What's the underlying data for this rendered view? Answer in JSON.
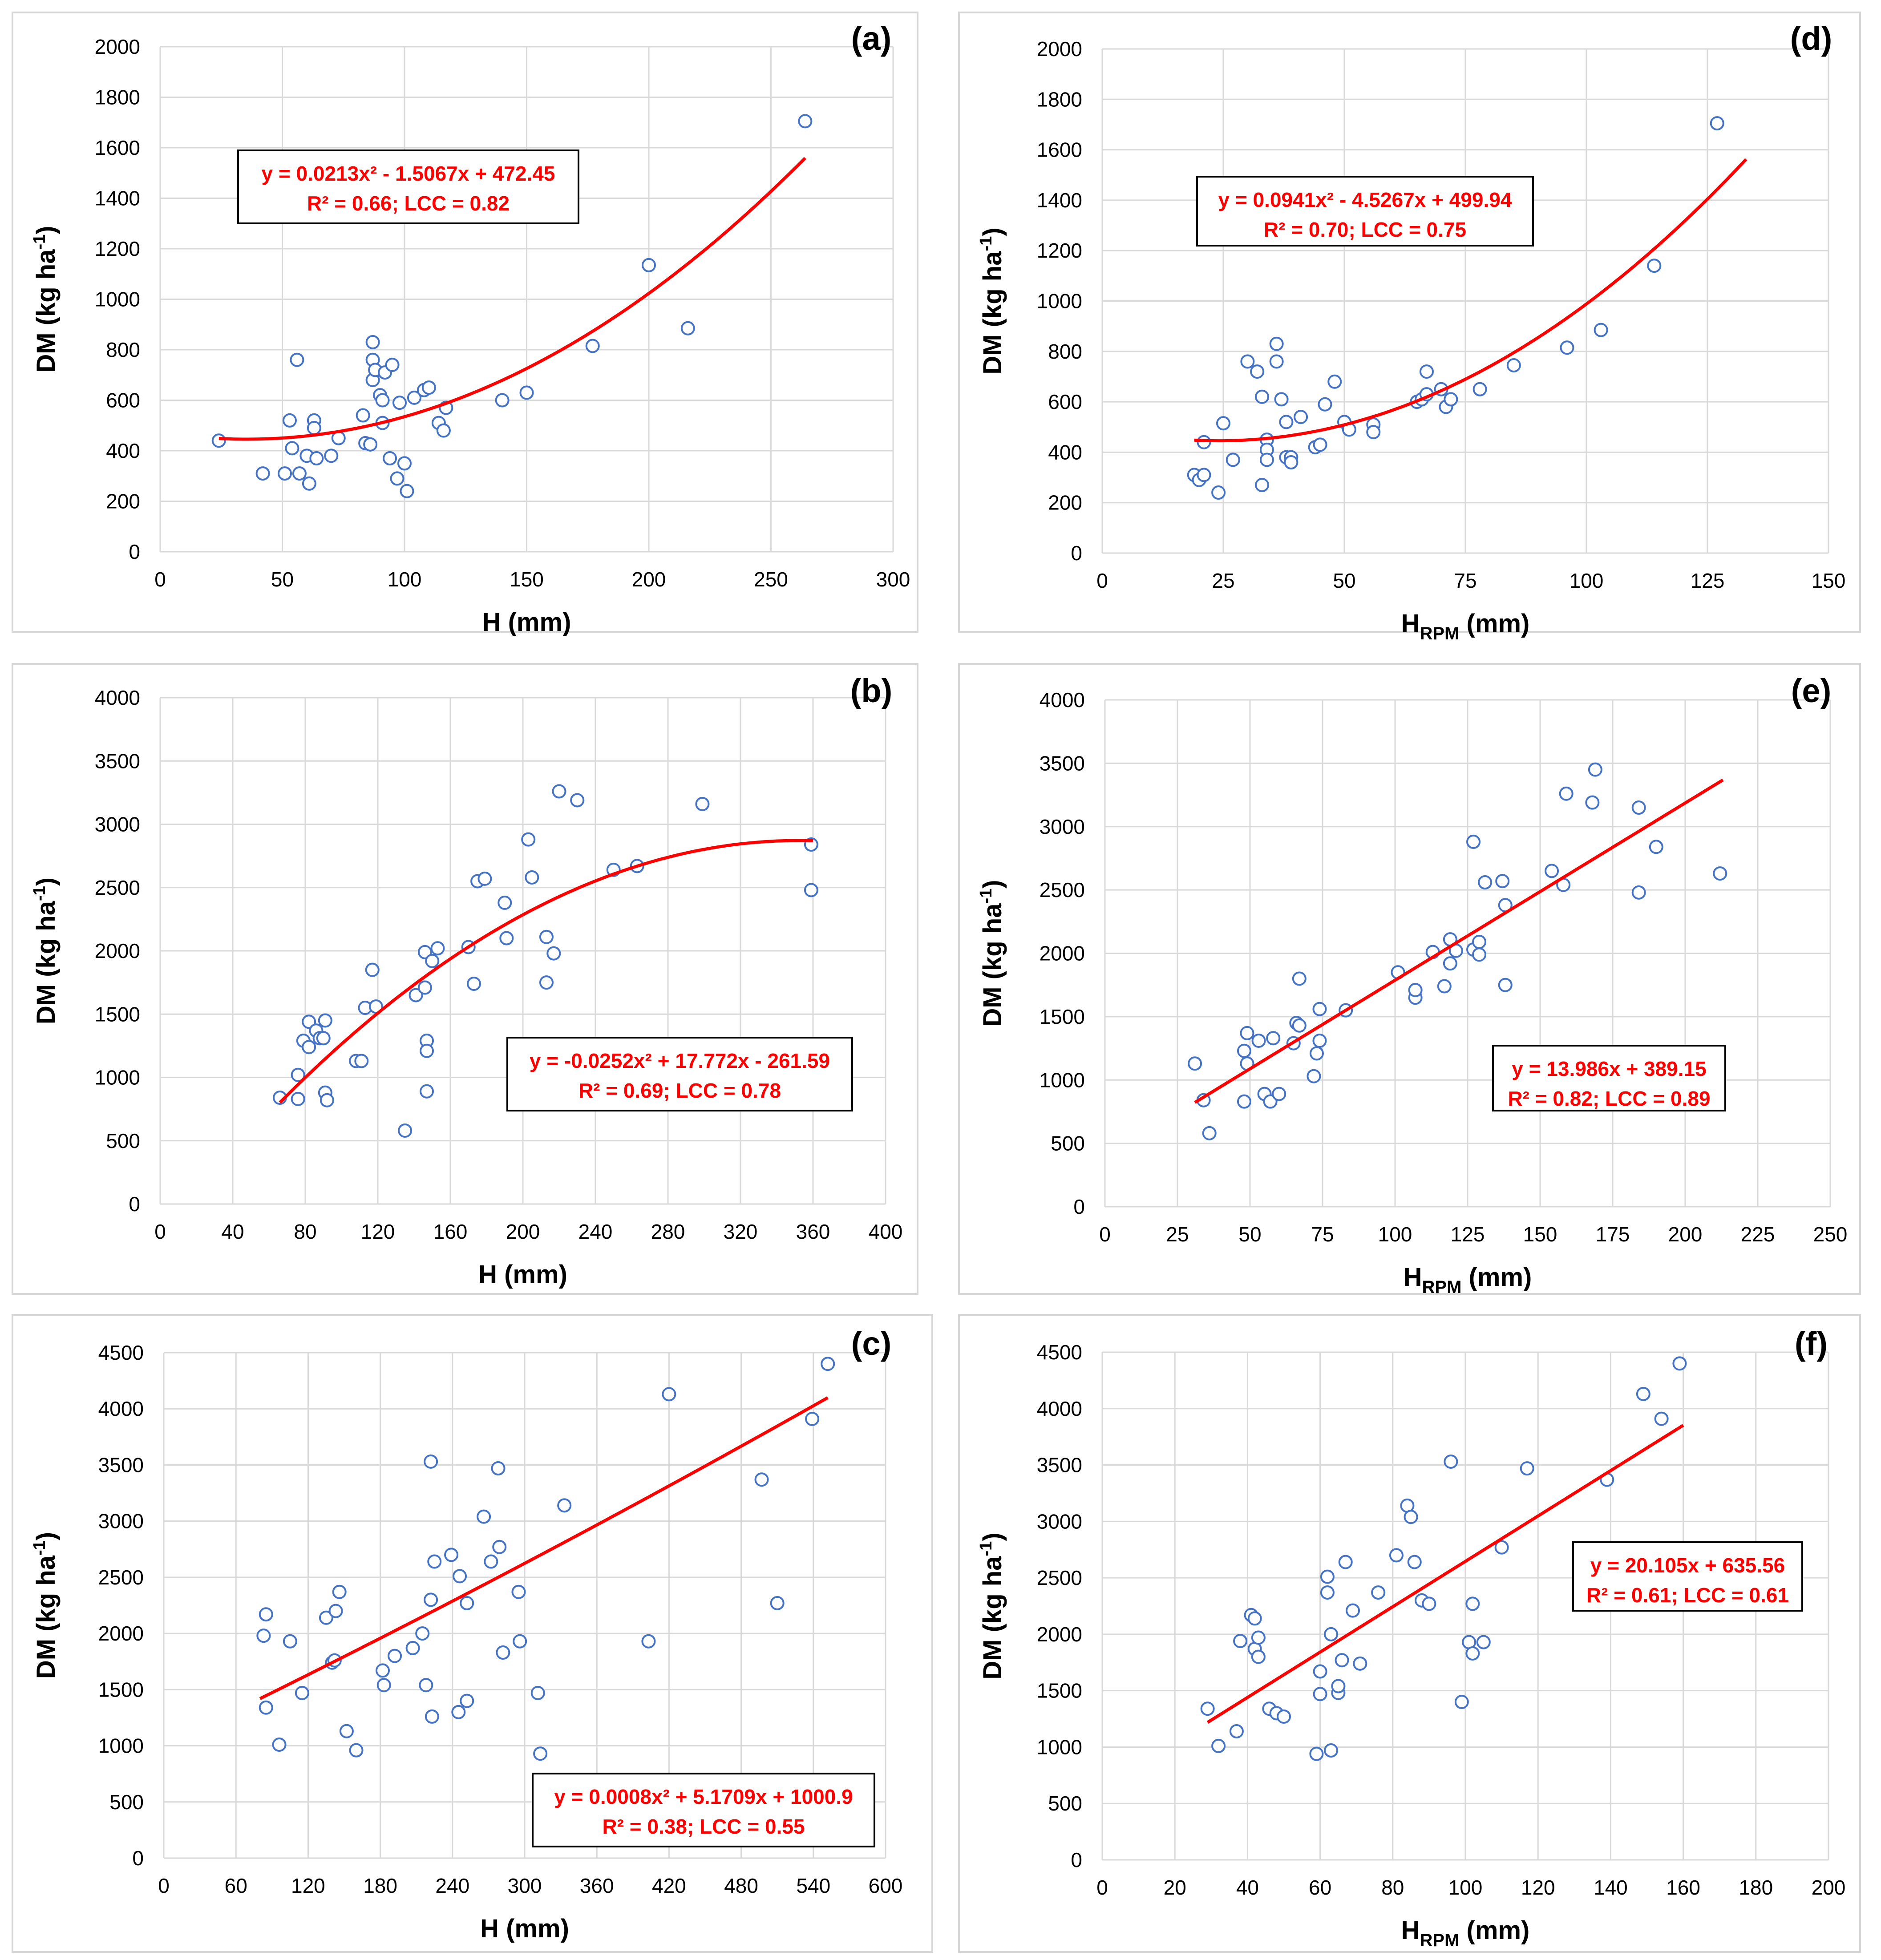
{
  "chart_data": [
    {
      "panel": "(a)",
      "type": "scatter",
      "xlabel": "H (mm)",
      "ylabel": "DM (kg ha-1)",
      "xlim": [
        0,
        300
      ],
      "ylim": [
        0,
        2000
      ],
      "xticks": [
        0,
        50,
        100,
        150,
        200,
        250,
        300
      ],
      "yticks": [
        0,
        200,
        400,
        600,
        800,
        1000,
        1200,
        1400,
        1600,
        1800,
        2000
      ],
      "grid": true,
      "points": [
        [
          24,
          440
        ],
        [
          42,
          310
        ],
        [
          51,
          310
        ],
        [
          53,
          520
        ],
        [
          54,
          410
        ],
        [
          56,
          760
        ],
        [
          57,
          310
        ],
        [
          60,
          380
        ],
        [
          61,
          270
        ],
        [
          63,
          520
        ],
        [
          63,
          490
        ],
        [
          64,
          370
        ],
        [
          70,
          380
        ],
        [
          73,
          450
        ],
        [
          83,
          540
        ],
        [
          84,
          430
        ],
        [
          86,
          425
        ],
        [
          87,
          830
        ],
        [
          87,
          760
        ],
        [
          87,
          680
        ],
        [
          88,
          720
        ],
        [
          90,
          620
        ],
        [
          91,
          510
        ],
        [
          91,
          600
        ],
        [
          92,
          710
        ],
        [
          94,
          370
        ],
        [
          95,
          740
        ],
        [
          97,
          290
        ],
        [
          98,
          590
        ],
        [
          100,
          350
        ],
        [
          101,
          240
        ],
        [
          104,
          610
        ],
        [
          108,
          640
        ],
        [
          110,
          650
        ],
        [
          114,
          510
        ],
        [
          116,
          480
        ],
        [
          117,
          570
        ],
        [
          140,
          600
        ],
        [
          150,
          630
        ],
        [
          177,
          815
        ],
        [
          200,
          1135
        ],
        [
          216,
          885
        ],
        [
          264,
          1705
        ]
      ],
      "fit": {
        "kind": "poly2",
        "coeffs": [
          0.0213,
          -1.5067,
          472.45
        ],
        "x_range": [
          24,
          264
        ]
      },
      "equation": "y = 0.0213x² - 1.5067x + 472.45",
      "stats": "R² = 0.66; LCC = 0.82"
    },
    {
      "panel": "(b)",
      "type": "scatter",
      "xlabel": "H (mm)",
      "ylabel": "DM (kg ha-1)",
      "xlim": [
        0,
        400
      ],
      "ylim": [
        0,
        4000
      ],
      "xticks": [
        0,
        40,
        80,
        120,
        160,
        200,
        240,
        280,
        320,
        360,
        400
      ],
      "yticks": [
        0,
        500,
        1000,
        1500,
        2000,
        2500,
        3000,
        3500,
        4000
      ],
      "grid": true,
      "points": [
        [
          66,
          840
        ],
        [
          76,
          830
        ],
        [
          76,
          1020
        ],
        [
          79,
          1290
        ],
        [
          82,
          1440
        ],
        [
          82,
          1240
        ],
        [
          86,
          1370
        ],
        [
          88,
          1310
        ],
        [
          90,
          1310
        ],
        [
          91,
          1450
        ],
        [
          91,
          880
        ],
        [
          92,
          820
        ],
        [
          108,
          1130
        ],
        [
          111,
          1130
        ],
        [
          113,
          1550
        ],
        [
          117,
          1850
        ],
        [
          119,
          1560
        ],
        [
          135,
          580
        ],
        [
          141,
          1650
        ],
        [
          146,
          1990
        ],
        [
          146,
          1710
        ],
        [
          147,
          1290
        ],
        [
          147,
          1210
        ],
        [
          147,
          890
        ],
        [
          150,
          1920
        ],
        [
          153,
          2020
        ],
        [
          170,
          2030
        ],
        [
          173,
          1740
        ],
        [
          175,
          2550
        ],
        [
          179,
          2570
        ],
        [
          190,
          2380
        ],
        [
          191,
          2100
        ],
        [
          203,
          2880
        ],
        [
          205,
          2580
        ],
        [
          213,
          2110
        ],
        [
          213,
          1750
        ],
        [
          217,
          1980
        ],
        [
          220,
          3260
        ],
        [
          230,
          3190
        ],
        [
          250,
          2640
        ],
        [
          263,
          2670
        ],
        [
          299,
          3160
        ],
        [
          359,
          2840
        ],
        [
          359,
          2480
        ]
      ],
      "fit": {
        "kind": "poly2",
        "coeffs": [
          -0.0252,
          17.772,
          -261.59
        ],
        "x_range": [
          66,
          360
        ]
      },
      "equation": "y = -0.0252x² + 17.772x - 261.59",
      "stats": "R² = 0.69; LCC = 0.78"
    },
    {
      "panel": "(c)",
      "type": "scatter",
      "xlabel": "H (mm)",
      "ylabel": "DM (kg ha-1)",
      "xlim": [
        0,
        600
      ],
      "ylim": [
        0,
        4500
      ],
      "xticks": [
        0,
        60,
        120,
        180,
        240,
        300,
        360,
        420,
        480,
        540,
        600
      ],
      "yticks": [
        0,
        500,
        1000,
        1500,
        2000,
        2500,
        3000,
        3500,
        4000,
        4500
      ],
      "grid": true,
      "points": [
        [
          83,
          1980
        ],
        [
          85,
          2170
        ],
        [
          85,
          1340
        ],
        [
          96,
          1010
        ],
        [
          105,
          1930
        ],
        [
          115,
          1470
        ],
        [
          135,
          2140
        ],
        [
          140,
          1740
        ],
        [
          142,
          1760
        ],
        [
          143,
          2200
        ],
        [
          146,
          2370
        ],
        [
          152,
          1130
        ],
        [
          160,
          960
        ],
        [
          182,
          1670
        ],
        [
          183,
          1540
        ],
        [
          192,
          1800
        ],
        [
          207,
          1870
        ],
        [
          215,
          2000
        ],
        [
          218,
          1540
        ],
        [
          222,
          3530
        ],
        [
          222,
          2300
        ],
        [
          223,
          1260
        ],
        [
          225,
          2640
        ],
        [
          239,
          2700
        ],
        [
          245,
          1300
        ],
        [
          246,
          2510
        ],
        [
          252,
          2270
        ],
        [
          252,
          1400
        ],
        [
          266,
          3040
        ],
        [
          272,
          2640
        ],
        [
          278,
          3470
        ],
        [
          279,
          2770
        ],
        [
          282,
          1830
        ],
        [
          295,
          2370
        ],
        [
          296,
          1930
        ],
        [
          311,
          1470
        ],
        [
          313,
          930
        ],
        [
          333,
          3140
        ],
        [
          403,
          1930
        ],
        [
          420,
          4130
        ],
        [
          497,
          3370
        ],
        [
          510,
          2270
        ],
        [
          539,
          3910
        ],
        [
          552,
          4400
        ]
      ],
      "fit": {
        "kind": "poly2",
        "coeffs": [
          0.0008,
          5.1709,
          1000.9
        ],
        "x_range": [
          80,
          552
        ]
      },
      "equation": "y = 0.0008x² + 5.1709x + 1000.9",
      "stats": "R² = 0.38; LCC = 0.55"
    },
    {
      "panel": "(d)",
      "type": "scatter",
      "xlabel_main": "H",
      "xlabel_sub": "RPM",
      "xlabel_tail": " (mm)",
      "ylabel": "DM (kg ha-1)",
      "xlim": [
        0,
        150
      ],
      "ylim": [
        0,
        2000
      ],
      "xticks": [
        0,
        25,
        50,
        75,
        100,
        125,
        150
      ],
      "yticks": [
        0,
        200,
        400,
        600,
        800,
        1000,
        1200,
        1400,
        1600,
        1800,
        2000
      ],
      "grid": true,
      "points": [
        [
          19,
          310
        ],
        [
          20,
          290
        ],
        [
          21,
          440
        ],
        [
          21,
          310
        ],
        [
          24,
          240
        ],
        [
          25,
          515
        ],
        [
          27,
          370
        ],
        [
          30,
          760
        ],
        [
          32,
          720
        ],
        [
          33,
          620
        ],
        [
          33,
          270
        ],
        [
          34,
          450
        ],
        [
          34,
          410
        ],
        [
          34,
          370
        ],
        [
          36,
          760
        ],
        [
          36,
          830
        ],
        [
          37,
          610
        ],
        [
          38,
          380
        ],
        [
          38,
          520
        ],
        [
          39,
          380
        ],
        [
          39,
          360
        ],
        [
          41,
          540
        ],
        [
          44,
          420
        ],
        [
          45,
          430
        ],
        [
          46,
          590
        ],
        [
          48,
          680
        ],
        [
          50,
          520
        ],
        [
          51,
          490
        ],
        [
          56,
          510
        ],
        [
          56,
          480
        ],
        [
          65,
          600
        ],
        [
          66,
          610
        ],
        [
          67,
          720
        ],
        [
          67,
          630
        ],
        [
          70,
          650
        ],
        [
          71,
          580
        ],
        [
          72,
          610
        ],
        [
          78,
          650
        ],
        [
          85,
          745
        ],
        [
          96,
          815
        ],
        [
          103,
          885
        ],
        [
          114,
          1140
        ],
        [
          127,
          1705
        ]
      ],
      "fit": {
        "kind": "poly2",
        "coeffs": [
          0.0941,
          -4.5267,
          499.94
        ],
        "x_range": [
          19,
          133
        ]
      },
      "equation": "y = 0.0941x² - 4.5267x + 499.94",
      "stats": "R² = 0.70; LCC = 0.75"
    },
    {
      "panel": "(e)",
      "type": "scatter",
      "xlabel_main": "H",
      "xlabel_sub": "RPM",
      "xlabel_tail": " (mm)",
      "ylabel": "DM (kg ha-1)",
      "xlim": [
        0,
        250
      ],
      "ylim": [
        0,
        4000
      ],
      "xticks": [
        0,
        25,
        50,
        75,
        100,
        125,
        150,
        175,
        200,
        225,
        250
      ],
      "yticks": [
        0,
        500,
        1000,
        1500,
        2000,
        2500,
        3000,
        3500,
        4000
      ],
      "grid": true,
      "points": [
        [
          31,
          1130
        ],
        [
          34,
          840
        ],
        [
          36,
          580
        ],
        [
          48,
          1230
        ],
        [
          48,
          830
        ],
        [
          49,
          1370
        ],
        [
          49,
          1130
        ],
        [
          53,
          1310
        ],
        [
          55,
          890
        ],
        [
          57,
          830
        ],
        [
          58,
          1330
        ],
        [
          60,
          890
        ],
        [
          65,
          1290
        ],
        [
          66,
          1450
        ],
        [
          67,
          1800
        ],
        [
          67,
          1430
        ],
        [
          72,
          1030
        ],
        [
          73,
          1210
        ],
        [
          74,
          1310
        ],
        [
          74,
          1560
        ],
        [
          83,
          1550
        ],
        [
          101,
          1850
        ],
        [
          107,
          1650
        ],
        [
          107,
          1710
        ],
        [
          113,
          2010
        ],
        [
          117,
          1740
        ],
        [
          119,
          2110
        ],
        [
          119,
          1920
        ],
        [
          121,
          2020
        ],
        [
          127,
          2880
        ],
        [
          127,
          2030
        ],
        [
          129,
          1990
        ],
        [
          129,
          2090
        ],
        [
          131,
          2560
        ],
        [
          137,
          2570
        ],
        [
          138,
          1750
        ],
        [
          138,
          2380
        ],
        [
          154,
          2650
        ],
        [
          158,
          2540
        ],
        [
          159,
          3260
        ],
        [
          168,
          3190
        ],
        [
          169,
          3450
        ],
        [
          184,
          3150
        ],
        [
          184,
          2480
        ],
        [
          190,
          2840
        ],
        [
          212,
          2630
        ]
      ],
      "fit": {
        "kind": "linear",
        "coeffs": [
          13.986,
          389.15
        ],
        "x_range": [
          31,
          213
        ]
      },
      "equation": "y = 13.986x + 389.15",
      "stats": "R² = 0.82; LCC = 0.89"
    },
    {
      "panel": "(f)",
      "type": "scatter",
      "xlabel_main": "H",
      "xlabel_sub": "RPM",
      "xlabel_tail": " (mm)",
      "ylabel": "DM (kg ha-1)",
      "xlim": [
        0,
        200
      ],
      "ylim": [
        0,
        4500
      ],
      "xticks": [
        0,
        20,
        40,
        60,
        80,
        100,
        120,
        140,
        160,
        180,
        200
      ],
      "yticks": [
        0,
        500,
        1000,
        1500,
        2000,
        2500,
        3000,
        3500,
        4000,
        4500
      ],
      "grid": true,
      "points": [
        [
          29,
          1340
        ],
        [
          32,
          1010
        ],
        [
          37,
          1140
        ],
        [
          38,
          1940
        ],
        [
          41,
          2170
        ],
        [
          42,
          2140
        ],
        [
          42,
          1870
        ],
        [
          43,
          1800
        ],
        [
          43,
          1970
        ],
        [
          46,
          1340
        ],
        [
          48,
          1300
        ],
        [
          50,
          1270
        ],
        [
          59,
          940
        ],
        [
          60,
          1470
        ],
        [
          60,
          1670
        ],
        [
          62,
          2510
        ],
        [
          62,
          2370
        ],
        [
          63,
          970
        ],
        [
          63,
          2000
        ],
        [
          65,
          1480
        ],
        [
          65,
          1540
        ],
        [
          66,
          1770
        ],
        [
          67,
          2640
        ],
        [
          69,
          2210
        ],
        [
          71,
          1740
        ],
        [
          76,
          2370
        ],
        [
          81,
          2700
        ],
        [
          84,
          3140
        ],
        [
          85,
          3040
        ],
        [
          86,
          2640
        ],
        [
          88,
          2300
        ],
        [
          90,
          2270
        ],
        [
          96,
          3530
        ],
        [
          99,
          1400
        ],
        [
          101,
          1930
        ],
        [
          102,
          1830
        ],
        [
          102,
          2270
        ],
        [
          105,
          1930
        ],
        [
          110,
          2770
        ],
        [
          117,
          3470
        ],
        [
          139,
          3370
        ],
        [
          149,
          4130
        ],
        [
          154,
          3910
        ],
        [
          159,
          4400
        ]
      ],
      "fit": {
        "kind": "linear",
        "coeffs": [
          20.105,
          635.56
        ],
        "x_range": [
          29,
          160
        ]
      },
      "equation": "y = 20.105x + 635.56",
      "stats": "R² = 0.61; LCC = 0.61"
    }
  ]
}
